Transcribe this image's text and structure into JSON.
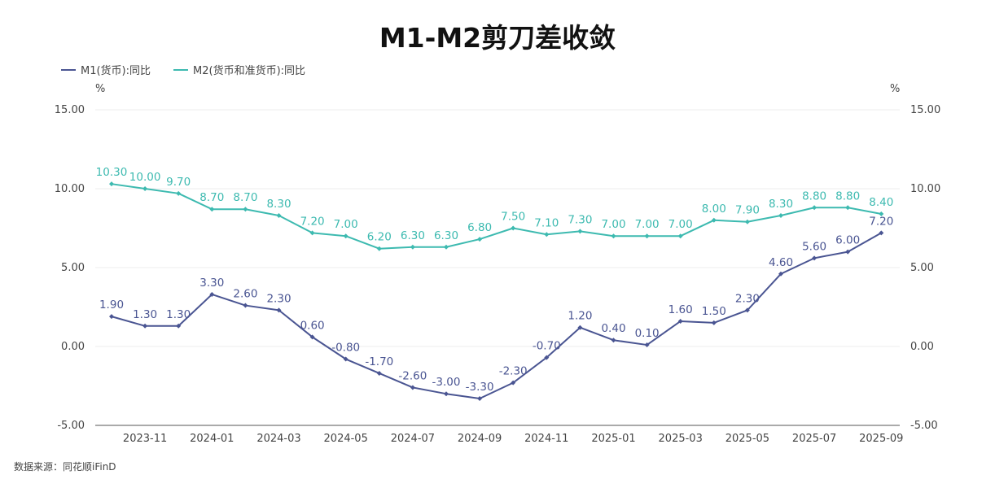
{
  "chart_data": {
    "type": "line",
    "title": "M1-M2剪刀差收敛",
    "y_unit_left": "%",
    "y_unit_right": "%",
    "ylim": [
      -5,
      15
    ],
    "yticks": [
      "-5.00",
      "0.00",
      "5.00",
      "10.00",
      "15.00"
    ],
    "ytick_values": [
      -5,
      0,
      5,
      10,
      15
    ],
    "x": [
      "2023-10",
      "2023-11",
      "2023-12",
      "2024-01",
      "2024-02",
      "2024-03",
      "2024-04",
      "2024-05",
      "2024-06",
      "2024-07",
      "2024-08",
      "2024-09",
      "2024-10",
      "2024-11",
      "2024-12",
      "2025-01",
      "2025-02",
      "2025-03",
      "2025-04",
      "2025-05",
      "2025-06",
      "2025-07",
      "2025-08",
      "2025-09"
    ],
    "xtick_labels": [
      "2023-11",
      "2024-01",
      "2024-03",
      "2024-05",
      "2024-07",
      "2024-09",
      "2024-11",
      "2025-01",
      "2025-03",
      "2025-05",
      "2025-07",
      "2025-09"
    ],
    "series": [
      {
        "name": "M1(货币):同比",
        "color": "#4a5592",
        "values": [
          1.9,
          1.3,
          1.3,
          3.3,
          2.6,
          2.3,
          0.6,
          -0.8,
          -1.7,
          -2.6,
          -3.0,
          -3.3,
          -2.3,
          -0.7,
          1.2,
          0.4,
          0.1,
          1.6,
          1.5,
          2.3,
          4.6,
          5.6,
          6.0,
          7.2
        ],
        "labels": [
          "1.90",
          "1.30",
          "1.30",
          "3.30",
          "2.60",
          "2.30",
          "0.60",
          "-0.80",
          "-1.70",
          "-2.60",
          "-3.00",
          "-3.30",
          "-2.30",
          "-0.70",
          "1.20",
          "0.40",
          "0.10",
          "1.60",
          "1.50",
          "2.30",
          "4.60",
          "5.60",
          "6.00",
          "7.20"
        ]
      },
      {
        "name": "M2(货币和准货币):同比",
        "color": "#3dbab0",
        "values": [
          10.3,
          10.0,
          9.7,
          8.7,
          8.7,
          8.3,
          7.2,
          7.0,
          6.2,
          6.3,
          6.3,
          6.8,
          7.5,
          7.1,
          7.3,
          7.0,
          7.0,
          7.0,
          8.0,
          7.9,
          8.3,
          8.8,
          8.8,
          8.4
        ],
        "labels": [
          "10.30",
          "10.00",
          "9.70",
          "8.70",
          "8.70",
          "8.30",
          "7.20",
          "7.00",
          "6.20",
          "6.30",
          "6.30",
          "6.80",
          "7.50",
          "7.10",
          "7.30",
          "7.00",
          "7.00",
          "7.00",
          "8.00",
          "7.90",
          "8.30",
          "8.80",
          "8.80",
          "8.40"
        ]
      }
    ],
    "legend_position": "top-left",
    "grid": true
  },
  "source_note": "数据来源：同花顺iFinD"
}
